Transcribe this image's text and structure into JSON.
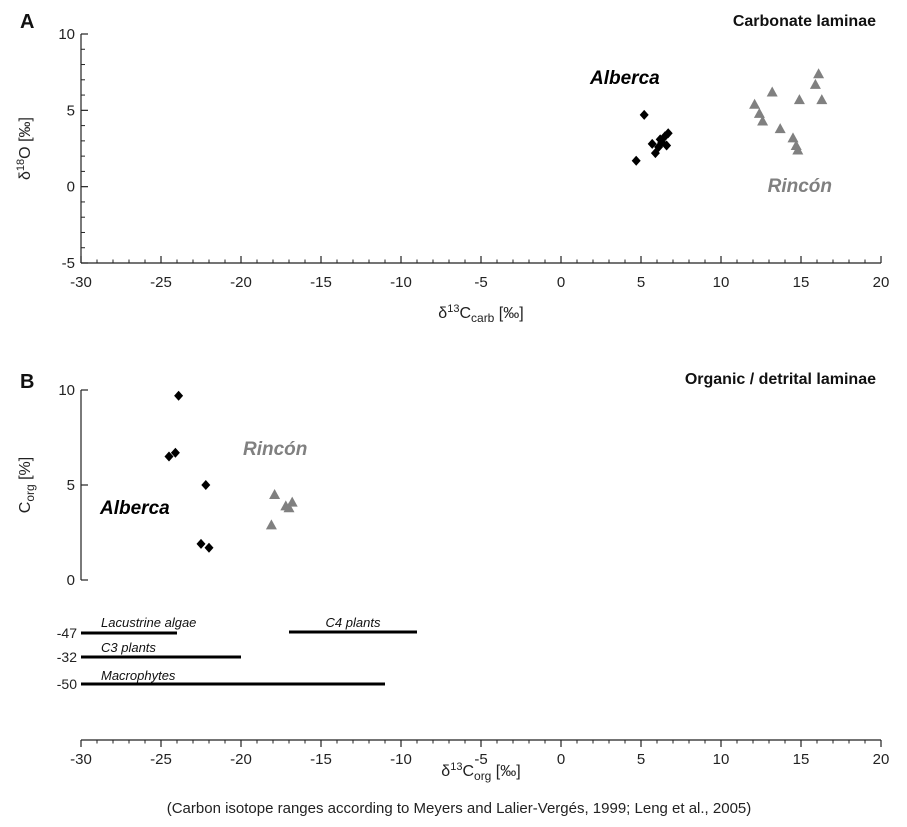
{
  "caption": "(Carbon isotope ranges according to Meyers and Lalier-Vergés, 1999; Leng et al., 2005)",
  "colors": {
    "alberca": "#000000",
    "rincon": "#808080",
    "axis": "#222222",
    "range_bar": "#000000"
  },
  "chart_data": [
    {
      "panel": "A",
      "type": "scatter",
      "title": "Carbonate laminae",
      "xlabel": {
        "base": "δ",
        "sup": "13",
        "main": "C",
        "sub": "carb",
        "unit": " [‰]"
      },
      "ylabel": {
        "base": "δ",
        "sup": "18",
        "main": "O",
        "unit": " [‰]"
      },
      "xlim": [
        -30,
        20
      ],
      "ylim": [
        -5,
        10
      ],
      "xticks": [
        "-30",
        "-25",
        "-20",
        "-15",
        "-10",
        "-5",
        "0",
        "5",
        "10",
        "15",
        "20"
      ],
      "yticks": [
        "-5",
        "0",
        "5",
        "10"
      ],
      "grid": false,
      "series": [
        {
          "name": "Alberca",
          "marker": "diamond",
          "color": "#000000",
          "points": [
            [
              4.7,
              1.7
            ],
            [
              5.2,
              4.7
            ],
            [
              5.7,
              2.8
            ],
            [
              5.9,
              2.2
            ],
            [
              6.1,
              2.6
            ],
            [
              6.3,
              2.9
            ],
            [
              6.5,
              3.3
            ],
            [
              6.6,
              2.7
            ],
            [
              6.7,
              3.5
            ],
            [
              6.2,
              3.1
            ]
          ]
        },
        {
          "name": "Rincón",
          "marker": "triangle",
          "color": "#808080",
          "points": [
            [
              12.1,
              5.4
            ],
            [
              12.4,
              4.8
            ],
            [
              12.6,
              4.3
            ],
            [
              13.2,
              6.2
            ],
            [
              13.7,
              3.8
            ],
            [
              14.5,
              3.2
            ],
            [
              14.7,
              2.7
            ],
            [
              14.8,
              2.4
            ],
            [
              14.9,
              5.7
            ],
            [
              15.9,
              6.7
            ],
            [
              16.1,
              7.4
            ],
            [
              16.3,
              5.7
            ]
          ]
        }
      ]
    },
    {
      "panel": "B",
      "type": "scatter",
      "title": "Organic / detrital laminae",
      "xlabel": {
        "base": "δ",
        "sup": "13",
        "main": "C",
        "sub": "org",
        "unit": " [‰]"
      },
      "ylabel": {
        "main": "C",
        "sub": "org",
        "unit": " [%]"
      },
      "xlim": [
        -30,
        20
      ],
      "ylim": [
        0,
        10
      ],
      "xticks": [
        "-30",
        "-25",
        "-20",
        "-15",
        "-10",
        "-5",
        "0",
        "5",
        "10",
        "15",
        "20"
      ],
      "yticks": [
        "0",
        "5",
        "10"
      ],
      "grid": false,
      "series": [
        {
          "name": "Alberca",
          "marker": "diamond",
          "color": "#000000",
          "points": [
            [
              -23.9,
              9.7
            ],
            [
              -24.5,
              6.5
            ],
            [
              -24.1,
              6.7
            ],
            [
              -22.2,
              5.0
            ],
            [
              -22.5,
              1.9
            ],
            [
              -22.0,
              1.7
            ]
          ]
        },
        {
          "name": "Rincón",
          "marker": "triangle",
          "color": "#808080",
          "points": [
            [
              -17.9,
              4.5
            ],
            [
              -18.1,
              2.9
            ],
            [
              -17.2,
              3.9
            ],
            [
              -16.8,
              4.1
            ],
            [
              -17.0,
              3.8
            ]
          ]
        }
      ],
      "ranges": [
        {
          "name": "Lacustrine algae",
          "start": -30,
          "end": -24,
          "row_value": "-47"
        },
        {
          "name": "C4 plants",
          "start": -17,
          "end": -9,
          "row_value": ""
        },
        {
          "name": "C3 plants",
          "start": -30,
          "end": -20,
          "row_value": "-32"
        },
        {
          "name": "Macrophytes",
          "start": -30,
          "end": -11,
          "row_value": "-50"
        }
      ]
    }
  ]
}
